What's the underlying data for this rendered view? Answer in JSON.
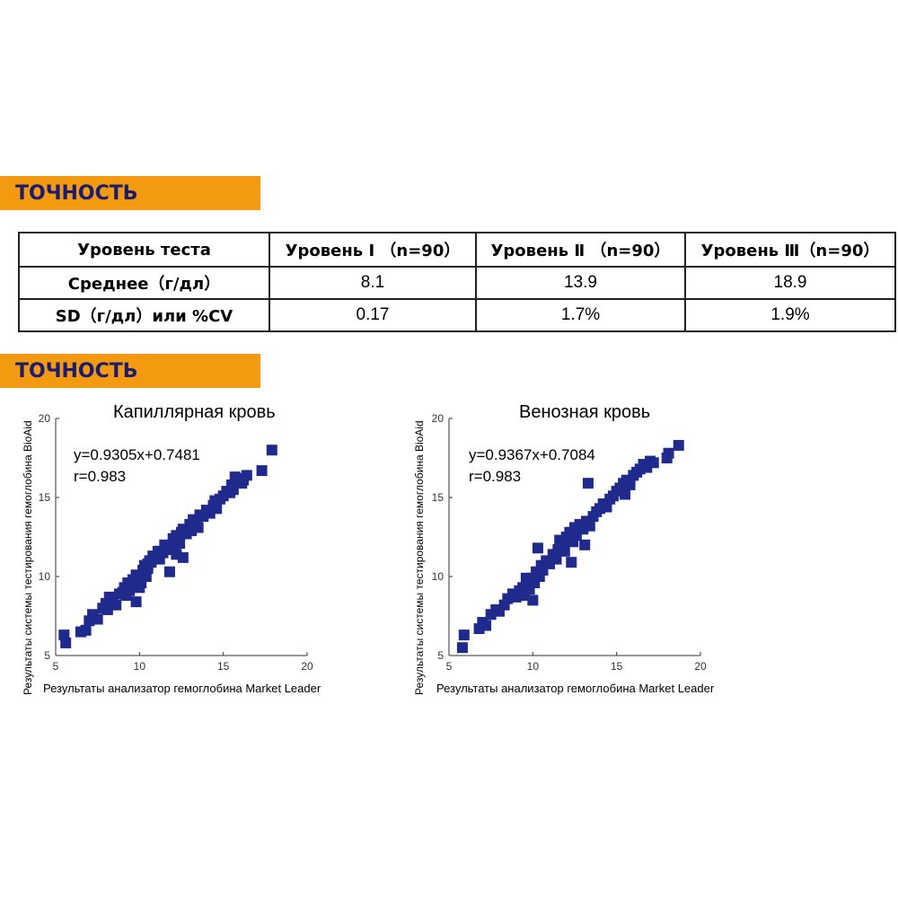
{
  "section1": {
    "title": "ТОЧНОСТЬ"
  },
  "section2": {
    "title": "ТОЧНОСТЬ"
  },
  "table": {
    "headers": [
      "Уровень теста",
      "Уровень Ⅰ （n=90）",
      "Уровень Ⅱ （n=90）",
      "Уровень Ⅲ（n=90）"
    ],
    "rows": [
      [
        "Среднее（г/дл）",
        "8.1",
        "13.9",
        "18.9"
      ],
      [
        "SD（г/дл）или %CV",
        "0.17",
        "1.7%",
        "1.9%"
      ]
    ]
  },
  "colors": {
    "banner": "#f39a10",
    "banner_text": "#1c1c6e",
    "marker": "#1f2a8c"
  },
  "chart_data": [
    {
      "type": "scatter",
      "title": "Капиллярная кровь",
      "xlabel": "Результаты анализатор гемоглобина Market Leader",
      "ylabel": "Результаты системы тестирования гемоглобина BioAid",
      "xlim": [
        5,
        20
      ],
      "ylim": [
        5,
        20
      ],
      "xticks": [
        5,
        10,
        15,
        20
      ],
      "yticks": [
        5,
        10,
        15,
        20
      ],
      "grid": false,
      "annotations": [
        "y=0.9305x+0.7481",
        "r=0.983"
      ],
      "series": [
        {
          "x": [
            5.5,
            5.6,
            6.5,
            6.8,
            7.0,
            7.2,
            7.5,
            7.8,
            8.0,
            8.1,
            8.2,
            8.4,
            8.6,
            8.8,
            9.0,
            9.1,
            9.2,
            9.3,
            9.4,
            9.5,
            9.6,
            9.7,
            9.8,
            9.9,
            10.0,
            10.1,
            10.2,
            10.3,
            10.4,
            10.5,
            10.6,
            10.7,
            10.8,
            11.0,
            11.1,
            11.2,
            11.4,
            11.5,
            11.6,
            11.8,
            12.0,
            12.1,
            12.2,
            12.4,
            12.5,
            12.6,
            12.8,
            13.0,
            13.1,
            13.2,
            13.4,
            13.5,
            13.6,
            13.8,
            14.0,
            14.2,
            14.4,
            14.6,
            14.8,
            15.0,
            15.2,
            15.4,
            15.5,
            15.6,
            15.8,
            16.0,
            16.2,
            16.4,
            17.3,
            17.9,
            9.8,
            10.5,
            11.8,
            12.6,
            10.0,
            11.3,
            12.2,
            14.5,
            15.7,
            16.1
          ],
          "y": [
            6.3,
            5.8,
            6.5,
            6.6,
            7.2,
            7.6,
            7.3,
            8.0,
            8.3,
            7.9,
            8.7,
            8.5,
            8.2,
            8.9,
            9.0,
            9.3,
            8.8,
            9.6,
            9.1,
            9.4,
            9.8,
            9.5,
            10.1,
            9.7,
            10.0,
            9.6,
            10.4,
            10.7,
            10.0,
            10.5,
            11.0,
            10.9,
            11.3,
            11.2,
            11.6,
            11.1,
            11.5,
            12.0,
            11.8,
            11.7,
            12.4,
            11.9,
            12.6,
            12.1,
            12.8,
            13.0,
            12.7,
            13.3,
            12.9,
            13.6,
            13.4,
            13.1,
            13.9,
            13.8,
            14.2,
            14.0,
            14.5,
            14.3,
            14.9,
            15.1,
            15.4,
            15.3,
            15.8,
            15.5,
            16.0,
            16.2,
            16.1,
            16.4,
            16.7,
            18.0,
            8.4,
            10.8,
            10.3,
            11.2,
            9.3,
            11.6,
            11.4,
            14.8,
            16.3,
            15.9
          ]
        }
      ]
    },
    {
      "type": "scatter",
      "title": "Венозная кровь",
      "xlabel": "Результаты анализатор гемоглобина Market Leader",
      "ylabel": "Результаты системы тестирования гемоглобина BioAid",
      "xlim": [
        5,
        20
      ],
      "ylim": [
        5,
        20
      ],
      "xticks": [
        5,
        10,
        15,
        20
      ],
      "yticks": [
        5,
        10,
        15,
        20
      ],
      "grid": false,
      "annotations": [
        "y=0.9367x+0.7084",
        "r=0.983"
      ],
      "series": [
        {
          "x": [
            5.8,
            5.9,
            6.8,
            7.0,
            7.2,
            7.5,
            7.8,
            8.0,
            8.3,
            8.5,
            8.8,
            9.0,
            9.2,
            9.4,
            9.5,
            9.7,
            9.8,
            10.0,
            10.1,
            10.2,
            10.4,
            10.5,
            10.6,
            10.8,
            11.0,
            11.2,
            11.4,
            11.5,
            11.6,
            11.8,
            12.0,
            12.2,
            12.4,
            12.5,
            12.6,
            12.8,
            13.0,
            13.2,
            13.4,
            13.6,
            13.8,
            14.0,
            14.2,
            14.4,
            14.6,
            14.8,
            15.0,
            15.2,
            15.4,
            15.6,
            15.8,
            16.0,
            16.2,
            16.4,
            16.6,
            16.8,
            17.0,
            17.2,
            18.0,
            18.1,
            18.7,
            9.6,
            10.0,
            10.3,
            11.9,
            13.1,
            13.3,
            12.3,
            15.5,
            16.7
          ],
          "y": [
            5.5,
            6.3,
            6.7,
            7.1,
            6.9,
            7.6,
            7.9,
            7.8,
            8.2,
            8.6,
            8.9,
            8.7,
            9.1,
            9.3,
            8.8,
            9.5,
            9.2,
            9.9,
            9.6,
            10.3,
            10.0,
            10.7,
            10.4,
            11.0,
            10.8,
            11.4,
            11.1,
            11.7,
            12.3,
            12.0,
            12.5,
            12.8,
            12.2,
            13.1,
            12.6,
            13.3,
            13.0,
            13.5,
            13.2,
            13.8,
            14.1,
            14.3,
            14.6,
            14.4,
            14.9,
            15.1,
            15.4,
            15.6,
            15.9,
            16.1,
            15.8,
            16.4,
            16.6,
            16.8,
            17.1,
            16.9,
            17.3,
            17.2,
            17.5,
            17.8,
            18.3,
            9.9,
            8.5,
            11.8,
            11.6,
            12.0,
            15.9,
            10.9,
            15.2,
            17.0
          ]
        }
      ]
    }
  ]
}
